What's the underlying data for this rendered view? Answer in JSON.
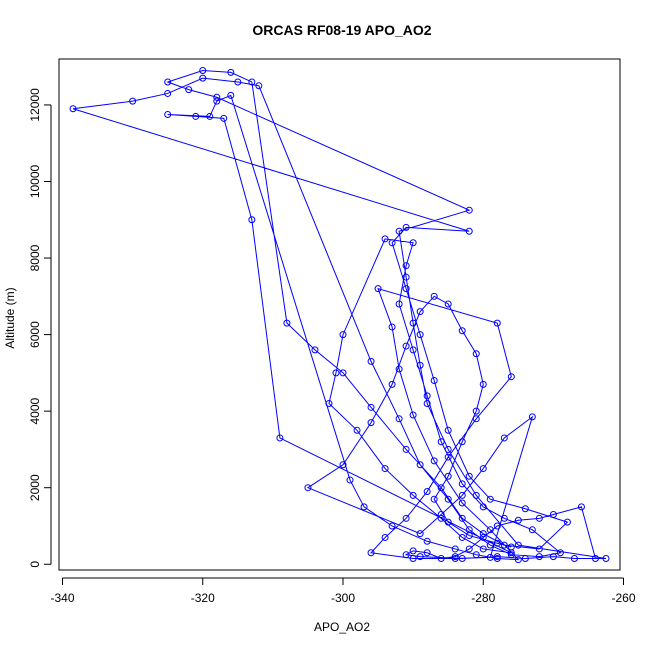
{
  "chart_data": {
    "type": "scatter",
    "title": "ORCAS RF08-19 APO_AO2",
    "xlabel": "APO_AO2",
    "ylabel": "Altitude (m)",
    "xlim": [
      -340.5,
      -260.5
    ],
    "ylim": [
      -150,
      13200
    ],
    "xticks": [
      -340,
      -320,
      -300,
      -280,
      -260
    ],
    "yticks": [
      0,
      2000,
      4000,
      6000,
      8000,
      10000,
      12000
    ],
    "grid": false,
    "legend": "none",
    "color": "#0000ff",
    "series": [
      {
        "values": [
          [
            -264,
            150
          ],
          [
            -266,
            1500
          ],
          [
            -270,
            1300
          ],
          [
            -272,
            1200
          ],
          [
            -275,
            1150
          ],
          [
            -278,
            1000
          ],
          [
            -280,
            700
          ],
          [
            -282,
            400
          ],
          [
            -284,
            200
          ],
          [
            -286,
            150
          ],
          [
            -288,
            300
          ],
          [
            -290,
            350
          ],
          [
            -291,
            250
          ],
          [
            -289,
            200
          ],
          [
            -283,
            150
          ],
          [
            -278,
            200
          ],
          [
            -274,
            150
          ],
          [
            -270,
            200
          ],
          [
            -267,
            150
          ],
          [
            -262.5,
            150
          ],
          [
            -275,
            500
          ],
          [
            -281,
            1800
          ],
          [
            -285,
            3000
          ],
          [
            -288,
            4200
          ],
          [
            -289,
            5200
          ],
          [
            -290,
            6300
          ],
          [
            -291,
            7500
          ],
          [
            -292,
            8700
          ],
          [
            -282,
            9250
          ],
          [
            -318,
            12200
          ],
          [
            -322,
            12400
          ],
          [
            -325,
            12600
          ],
          [
            -320,
            12900
          ],
          [
            -316,
            12850
          ],
          [
            -313,
            12600
          ],
          [
            -308,
            6300
          ],
          [
            -304,
            5600
          ],
          [
            -300,
            5000
          ],
          [
            -296,
            4100
          ],
          [
            -291,
            3000
          ],
          [
            -286,
            2000
          ],
          [
            -283,
            1200
          ],
          [
            -280,
            800
          ],
          [
            -277,
            500
          ],
          [
            -272,
            400
          ],
          [
            -268,
            1100
          ],
          [
            -274,
            1450
          ],
          [
            -279,
            1700
          ],
          [
            -282,
            2300
          ],
          [
            -285,
            3500
          ],
          [
            -287,
            4800
          ],
          [
            -289,
            6000
          ],
          [
            -291,
            7200
          ],
          [
            -293,
            8400
          ],
          [
            -291,
            8800
          ],
          [
            -282,
            8700
          ],
          [
            -338.5,
            11900
          ],
          [
            -330,
            12100
          ],
          [
            -325,
            12300
          ],
          [
            -320,
            12700
          ],
          [
            -315,
            12600
          ],
          [
            -312,
            12500
          ],
          [
            -296,
            5300
          ],
          [
            -292,
            3800
          ],
          [
            -289,
            2600
          ],
          [
            -285,
            1700
          ],
          [
            -282,
            900
          ],
          [
            -279,
            500
          ],
          [
            -276,
            250
          ],
          [
            -272,
            200
          ],
          [
            -269,
            300
          ],
          [
            -273,
            900
          ],
          [
            -277,
            1200
          ],
          [
            -280,
            1500
          ],
          [
            -283,
            2100
          ],
          [
            -286,
            3200
          ],
          [
            -288,
            4400
          ],
          [
            -290,
            5600
          ],
          [
            -292,
            6800
          ],
          [
            -291,
            7800
          ],
          [
            -290,
            8400
          ],
          [
            -294,
            8500
          ],
          [
            -300,
            6000
          ],
          [
            -301,
            5000
          ],
          [
            -302,
            4200
          ],
          [
            -298,
            3500
          ],
          [
            -294,
            2500
          ],
          [
            -290,
            1800
          ],
          [
            -286,
            1200
          ],
          [
            -283,
            700
          ],
          [
            -280,
            400
          ],
          [
            -276,
            300
          ],
          [
            -309,
            3300
          ],
          [
            -313,
            9000
          ],
          [
            -317,
            11650
          ],
          [
            -321,
            11700
          ],
          [
            -325,
            11750
          ],
          [
            -319,
            11700
          ],
          [
            -318,
            12100
          ],
          [
            -316,
            12250
          ],
          [
            -299,
            2200
          ],
          [
            -297,
            1500
          ],
          [
            -293,
            1000
          ],
          [
            -288,
            600
          ],
          [
            -284,
            400
          ],
          [
            -281,
            250
          ],
          [
            -278,
            150
          ],
          [
            -275,
            120
          ],
          [
            -279,
            900
          ],
          [
            -283,
            1600
          ],
          [
            -287,
            2700
          ],
          [
            -290,
            3900
          ],
          [
            -292,
            5100
          ],
          [
            -293,
            6200
          ],
          [
            -295,
            7200
          ],
          [
            -278,
            6300
          ],
          [
            -276,
            4900
          ],
          [
            -281,
            3800
          ],
          [
            -285,
            2800
          ],
          [
            -288,
            1900
          ],
          [
            -291,
            1200
          ],
          [
            -294,
            700
          ],
          [
            -296,
            300
          ],
          [
            -290,
            150
          ],
          [
            -284,
            150
          ],
          [
            -279,
            180
          ],
          [
            -273,
            3850
          ],
          [
            -277,
            3300
          ],
          [
            -280,
            2500
          ],
          [
            -283,
            1800
          ],
          [
            -286,
            1300
          ],
          [
            -289,
            800
          ],
          [
            -305,
            2000
          ],
          [
            -300,
            2600
          ],
          [
            -296,
            3700
          ],
          [
            -293,
            4700
          ],
          [
            -291,
            5700
          ],
          [
            -289,
            6600
          ],
          [
            -287,
            7000
          ],
          [
            -285,
            6800
          ],
          [
            -283,
            6100
          ],
          [
            -281,
            5500
          ],
          [
            -280,
            4700
          ],
          [
            -281,
            4000
          ],
          [
            -283,
            3200
          ],
          [
            -285,
            2300
          ],
          [
            -287,
            1700
          ],
          [
            -285,
            1100
          ],
          [
            -282,
            750
          ],
          [
            -278,
            550
          ],
          [
            -276,
            450
          ]
        ]
      }
    ]
  }
}
